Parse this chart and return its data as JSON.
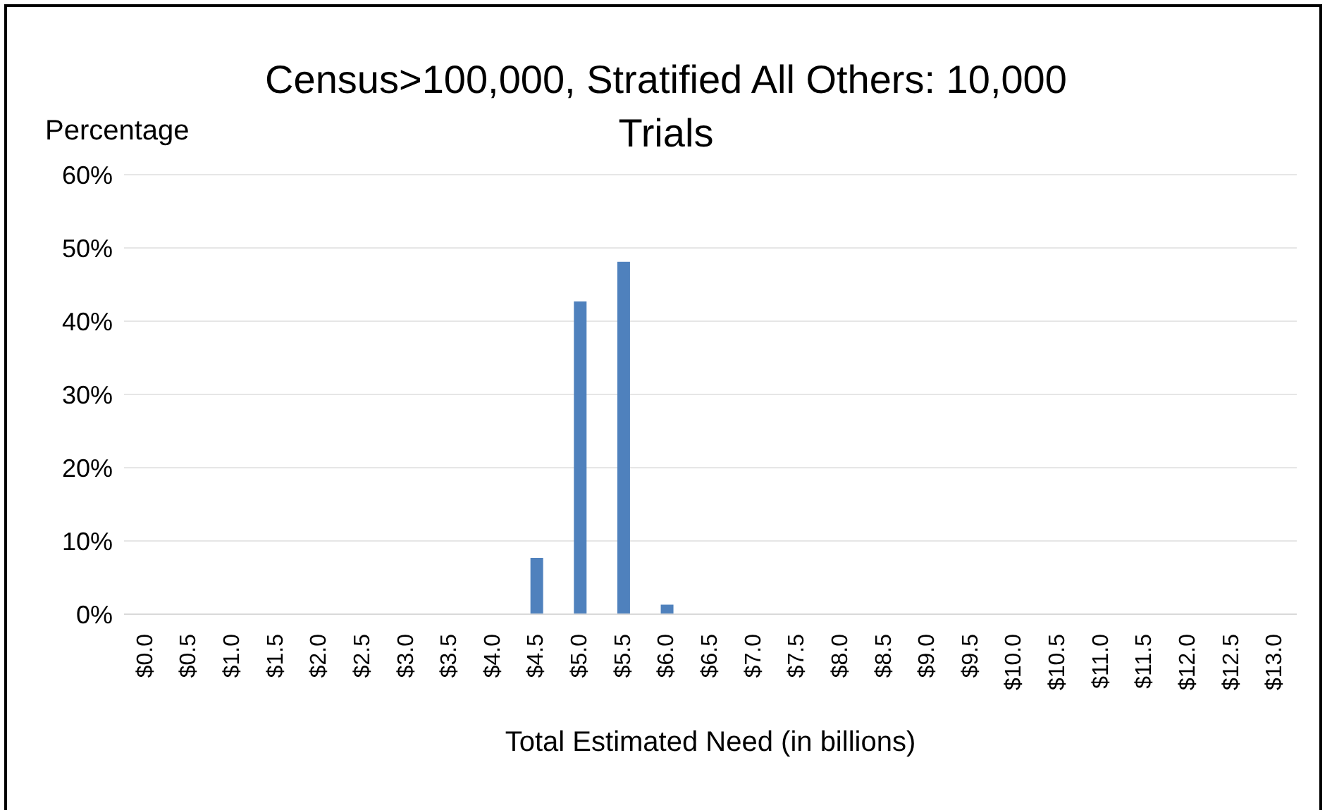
{
  "chart_data": {
    "type": "bar",
    "title": "Census>100,000, Stratified All Others: 10,000 Trials",
    "ylabel": "Percentage",
    "xlabel": "Total Estimated Need (in billions)",
    "categories": [
      "$0.0",
      "$0.5",
      "$1.0",
      "$1.5",
      "$2.0",
      "$2.5",
      "$3.0",
      "$3.5",
      "$4.0",
      "$4.5",
      "$5.0",
      "$5.5",
      "$6.0",
      "$6.5",
      "$7.0",
      "$7.5",
      "$8.0",
      "$8.5",
      "$9.0",
      "$9.5",
      "$10.0",
      "$10.5",
      "$11.0",
      "$11.5",
      "$12.0",
      "$12.5",
      "$13.0"
    ],
    "values": [
      0,
      0,
      0,
      0,
      0,
      0,
      0,
      0,
      0,
      7.7,
      42.7,
      48.1,
      1.3,
      0,
      0,
      0,
      0,
      0,
      0,
      0,
      0,
      0,
      0,
      0,
      0,
      0,
      0
    ],
    "color": "#4f81bd",
    "ylim": [
      0,
      60
    ],
    "yticks": [
      {
        "value": 0,
        "label": "0%"
      },
      {
        "value": 10,
        "label": "10%"
      },
      {
        "value": 20,
        "label": "20%"
      },
      {
        "value": 30,
        "label": "30%"
      },
      {
        "value": 40,
        "label": "40%"
      },
      {
        "value": 50,
        "label": "50%"
      },
      {
        "value": 60,
        "label": "60%"
      }
    ],
    "grid": "y"
  }
}
